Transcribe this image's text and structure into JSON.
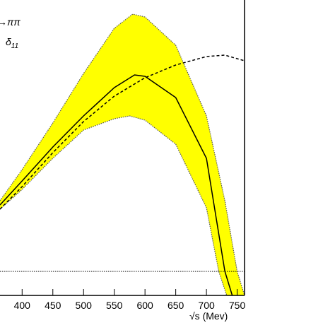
{
  "chart_data": {
    "type": "band-line",
    "x_label": "√s (Mev)",
    "annotations": [
      {
        "text": "→ππ"
      },
      {
        "text": "δ",
        "sub": "11"
      }
    ],
    "xlim": [
      364,
      762
    ],
    "ylim": [
      -17,
      192
    ],
    "xticks": [
      400,
      450,
      500,
      550,
      600,
      650,
      700,
      750
    ],
    "hline": 0,
    "band": {
      "color": "#ffff00",
      "edge_color": "#555555",
      "upper": {
        "x": [
          364,
          400,
          450,
          500,
          550,
          580,
          600,
          650,
          700,
          730,
          750,
          762
        ],
        "values": [
          50,
          72,
          105,
          140,
          172,
          182,
          180,
          160,
          110,
          50,
          0,
          -17
        ]
      },
      "lower": {
        "x": [
          364,
          400,
          450,
          500,
          550,
          575,
          600,
          650,
          700,
          720,
          733
        ],
        "values": [
          44,
          58,
          80,
          100,
          108,
          110,
          107,
          90,
          45,
          0,
          -17
        ]
      }
    },
    "series": [
      {
        "style": "solid",
        "color": "#000000",
        "x": [
          364,
          400,
          450,
          500,
          550,
          583,
          600,
          650,
          700,
          730,
          742
        ],
        "values": [
          47,
          64,
          88,
          110,
          130,
          139,
          138,
          123,
          80,
          0,
          -17
        ]
      },
      {
        "style": "dashed",
        "color": "#000000",
        "x": [
          364,
          400,
          450,
          500,
          550,
          600,
          650,
          700,
          730,
          762
        ],
        "values": [
          44,
          60,
          84,
          106,
          124,
          137,
          146,
          152,
          153,
          149
        ]
      }
    ]
  }
}
